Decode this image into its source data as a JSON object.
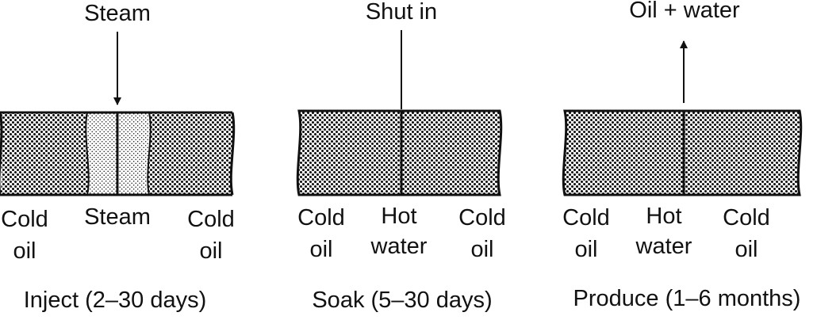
{
  "panels": [
    {
      "top_label": "Steam",
      "bottom_labels": [
        [
          "Cold",
          "oil"
        ],
        [
          "Steam"
        ],
        [
          "Cold",
          "oil"
        ]
      ],
      "caption": "Inject (2–30 days)"
    },
    {
      "top_label": "Shut in",
      "bottom_labels": [
        [
          "Cold",
          "oil"
        ],
        [
          "Hot",
          "water"
        ],
        [
          "Cold",
          "oil"
        ]
      ],
      "caption": "Soak (5–30 days)"
    },
    {
      "top_label": "Oil + water",
      "bottom_labels": [
        [
          "Cold",
          "oil"
        ],
        [
          "Hot",
          "water"
        ],
        [
          "Cold",
          "oil"
        ]
      ],
      "caption": "Produce (1–6 months)"
    }
  ],
  "colors": {
    "ink": "#111111",
    "background": "#ffffff"
  }
}
